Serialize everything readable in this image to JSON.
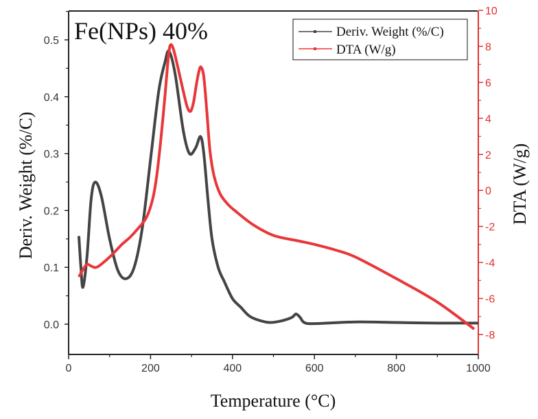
{
  "chart_data": {
    "type": "line",
    "annotation": "Fe(NPs) 40%",
    "xlabel": "Temperature (°C)",
    "ylabel": "Deriv. Weight (%/C)",
    "y2label": "DTA (W/g)",
    "xlim": [
      0,
      1000
    ],
    "ylim": [
      -0.05,
      0.55
    ],
    "y2lim": [
      -9,
      10
    ],
    "xticks": [
      0,
      200,
      400,
      600,
      800,
      1000
    ],
    "yticks": [
      0.0,
      0.1,
      0.2,
      0.3,
      0.4,
      0.5
    ],
    "y2ticks": [
      -8,
      -6,
      -4,
      -2,
      0,
      2,
      4,
      6,
      8,
      10
    ],
    "grid": false,
    "legend_position": "top-right",
    "colors": {
      "deriv": "#444444",
      "dta": "#e8373a",
      "right_axis": "#e03030"
    },
    "series": [
      {
        "name": "Deriv. Weight (%/C)",
        "axis": "left",
        "x": [
          25,
          30,
          35,
          45,
          55,
          65,
          80,
          100,
          120,
          140,
          160,
          180,
          200,
          220,
          235,
          245,
          260,
          280,
          295,
          310,
          322,
          330,
          340,
          350,
          365,
          380,
          400,
          420,
          440,
          460,
          490,
          520,
          545,
          555,
          565,
          575,
          600,
          700,
          800,
          900,
          1000
        ],
        "y": [
          0.155,
          0.1,
          0.065,
          0.12,
          0.22,
          0.25,
          0.225,
          0.15,
          0.095,
          0.08,
          0.1,
          0.17,
          0.29,
          0.41,
          0.46,
          0.48,
          0.44,
          0.34,
          0.3,
          0.31,
          0.33,
          0.3,
          0.22,
          0.15,
          0.1,
          0.075,
          0.045,
          0.03,
          0.015,
          0.008,
          0.003,
          0.006,
          0.012,
          0.018,
          0.012,
          0.003,
          0.001,
          0.004,
          0.003,
          0.002,
          0.002
        ]
      },
      {
        "name": "DTA (W/g)",
        "axis": "right",
        "x": [
          25,
          35,
          45,
          55,
          70,
          100,
          130,
          150,
          170,
          190,
          205,
          215,
          225,
          235,
          243,
          248,
          255,
          265,
          280,
          290,
          298,
          305,
          312,
          318,
          323,
          330,
          338,
          345,
          355,
          370,
          390,
          410,
          450,
          500,
          560,
          600,
          650,
          700,
          800,
          900,
          990
        ],
        "y": [
          -4.8,
          -4.4,
          -4.1,
          -4.2,
          -4.25,
          -3.7,
          -3.0,
          -2.6,
          -2.1,
          -1.5,
          -0.5,
          0.8,
          2.8,
          5.2,
          7.3,
          8.05,
          7.9,
          7.0,
          5.5,
          4.6,
          4.4,
          4.9,
          5.9,
          6.6,
          6.85,
          6.3,
          4.2,
          2.2,
          0.8,
          -0.2,
          -0.8,
          -1.2,
          -1.9,
          -2.5,
          -2.8,
          -3.0,
          -3.3,
          -3.7,
          -4.9,
          -6.2,
          -7.7
        ]
      }
    ]
  }
}
